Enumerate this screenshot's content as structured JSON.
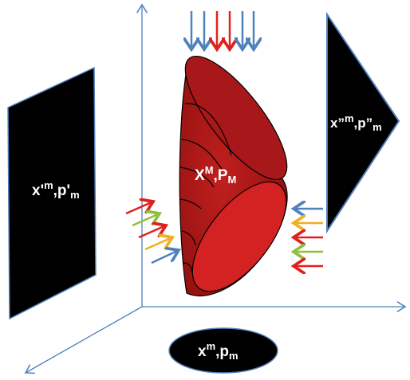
{
  "labels": {
    "left_panel": {
      "base": "x'",
      "sup": "m",
      "rest": ",p'",
      "sub": "m"
    },
    "right_panel": {
      "base": "x”",
      "sup": "m",
      "rest": ",p”",
      "sub": "m"
    },
    "center": {
      "base": "X",
      "sup": "M",
      "rest": ",P",
      "sub": "M"
    },
    "bottom": {
      "base": "x",
      "sup": "m",
      "rest": ",p",
      "sub": "m"
    }
  }
}
